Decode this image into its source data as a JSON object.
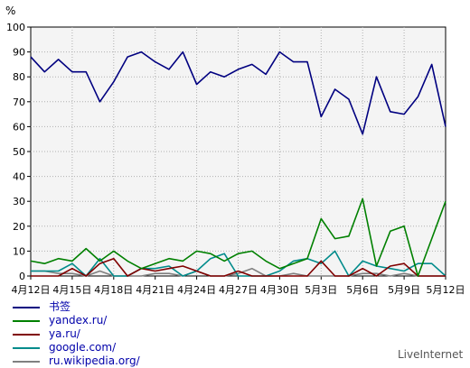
{
  "chart_data": {
    "type": "line",
    "ylabel": "%",
    "ylim": [
      0,
      100
    ],
    "yticks": [
      0,
      10,
      20,
      30,
      40,
      50,
      60,
      70,
      80,
      90,
      100
    ],
    "grid": true,
    "x": [
      "4月12日",
      "4月13日",
      "4月14日",
      "4月15日",
      "4月16日",
      "4月17日",
      "4月18日",
      "4月19日",
      "4月20日",
      "4月21日",
      "4月22日",
      "4月23日",
      "4月24日",
      "4月25日",
      "4月26日",
      "4月27日",
      "4月28日",
      "4月29日",
      "4月30日",
      "5月1日",
      "5月2日",
      "5月3日",
      "5月4日",
      "5月5日",
      "5月6日",
      "5月7日",
      "5月8日",
      "5月9日",
      "5月10日",
      "5月11日",
      "5月12日"
    ],
    "xticklabels": [
      {
        "index": 0,
        "label": "4月12日"
      },
      {
        "index": 3,
        "label": "4月15日"
      },
      {
        "index": 6,
        "label": "4月18日"
      },
      {
        "index": 9,
        "label": "4月21日"
      },
      {
        "index": 12,
        "label": "4月24日"
      },
      {
        "index": 15,
        "label": "4月27日"
      },
      {
        "index": 18,
        "label": "4月30日"
      },
      {
        "index": 21,
        "label": "5月3日"
      },
      {
        "index": 24,
        "label": "5月6日"
      },
      {
        "index": 27,
        "label": "5月9日"
      },
      {
        "index": 30,
        "label": "5月12日"
      }
    ],
    "series": [
      {
        "name": "书签",
        "color": "#000080",
        "values": [
          88,
          82,
          87,
          82,
          82,
          70,
          78,
          88,
          90,
          86,
          83,
          90,
          77,
          82,
          80,
          83,
          85,
          81,
          90,
          86,
          86,
          64,
          75,
          71,
          57,
          80,
          66,
          65,
          72,
          85,
          60
        ]
      },
      {
        "name": "yandex.ru/",
        "color": "#008000",
        "values": [
          6,
          5,
          7,
          6,
          11,
          6,
          10,
          6,
          3,
          5,
          7,
          6,
          10,
          9,
          6,
          9,
          10,
          6,
          3,
          5,
          7,
          23,
          15,
          16,
          31,
          4,
          18,
          20,
          0,
          15,
          30
        ]
      },
      {
        "name": "ya.ru/",
        "color": "#800000",
        "values": [
          0,
          0,
          0,
          3,
          0,
          5,
          7,
          0,
          3,
          2,
          3,
          4,
          2,
          0,
          0,
          2,
          0,
          0,
          0,
          0,
          0,
          6,
          0,
          0,
          3,
          0,
          4,
          5,
          0,
          0,
          0
        ]
      },
      {
        "name": "google.com/",
        "color": "#008b8b",
        "values": [
          2,
          2,
          2,
          5,
          0,
          7,
          0,
          0,
          3,
          3,
          4,
          0,
          2,
          7,
          9,
          0,
          0,
          0,
          2,
          6,
          7,
          5,
          10,
          0,
          6,
          4,
          3,
          2,
          5,
          5,
          0
        ]
      },
      {
        "name": "ru.wikipedia.org/",
        "color": "#808080",
        "values": [
          2,
          2,
          1,
          1,
          0,
          2,
          0,
          0,
          0,
          1,
          1,
          0,
          2,
          0,
          0,
          1,
          3,
          0,
          0,
          1,
          0,
          0,
          0,
          0,
          1,
          1,
          0,
          1,
          0,
          0,
          0
        ]
      }
    ]
  },
  "legend": [
    {
      "label": "书签",
      "color": "#000080"
    },
    {
      "label": "yandex.ru/",
      "color": "#008000"
    },
    {
      "label": "ya.ru/",
      "color": "#800000"
    },
    {
      "label": "google.com/",
      "color": "#008b8b"
    },
    {
      "label": "ru.wikipedia.org/",
      "color": "#808080"
    }
  ],
  "credit": "LiveInternet"
}
